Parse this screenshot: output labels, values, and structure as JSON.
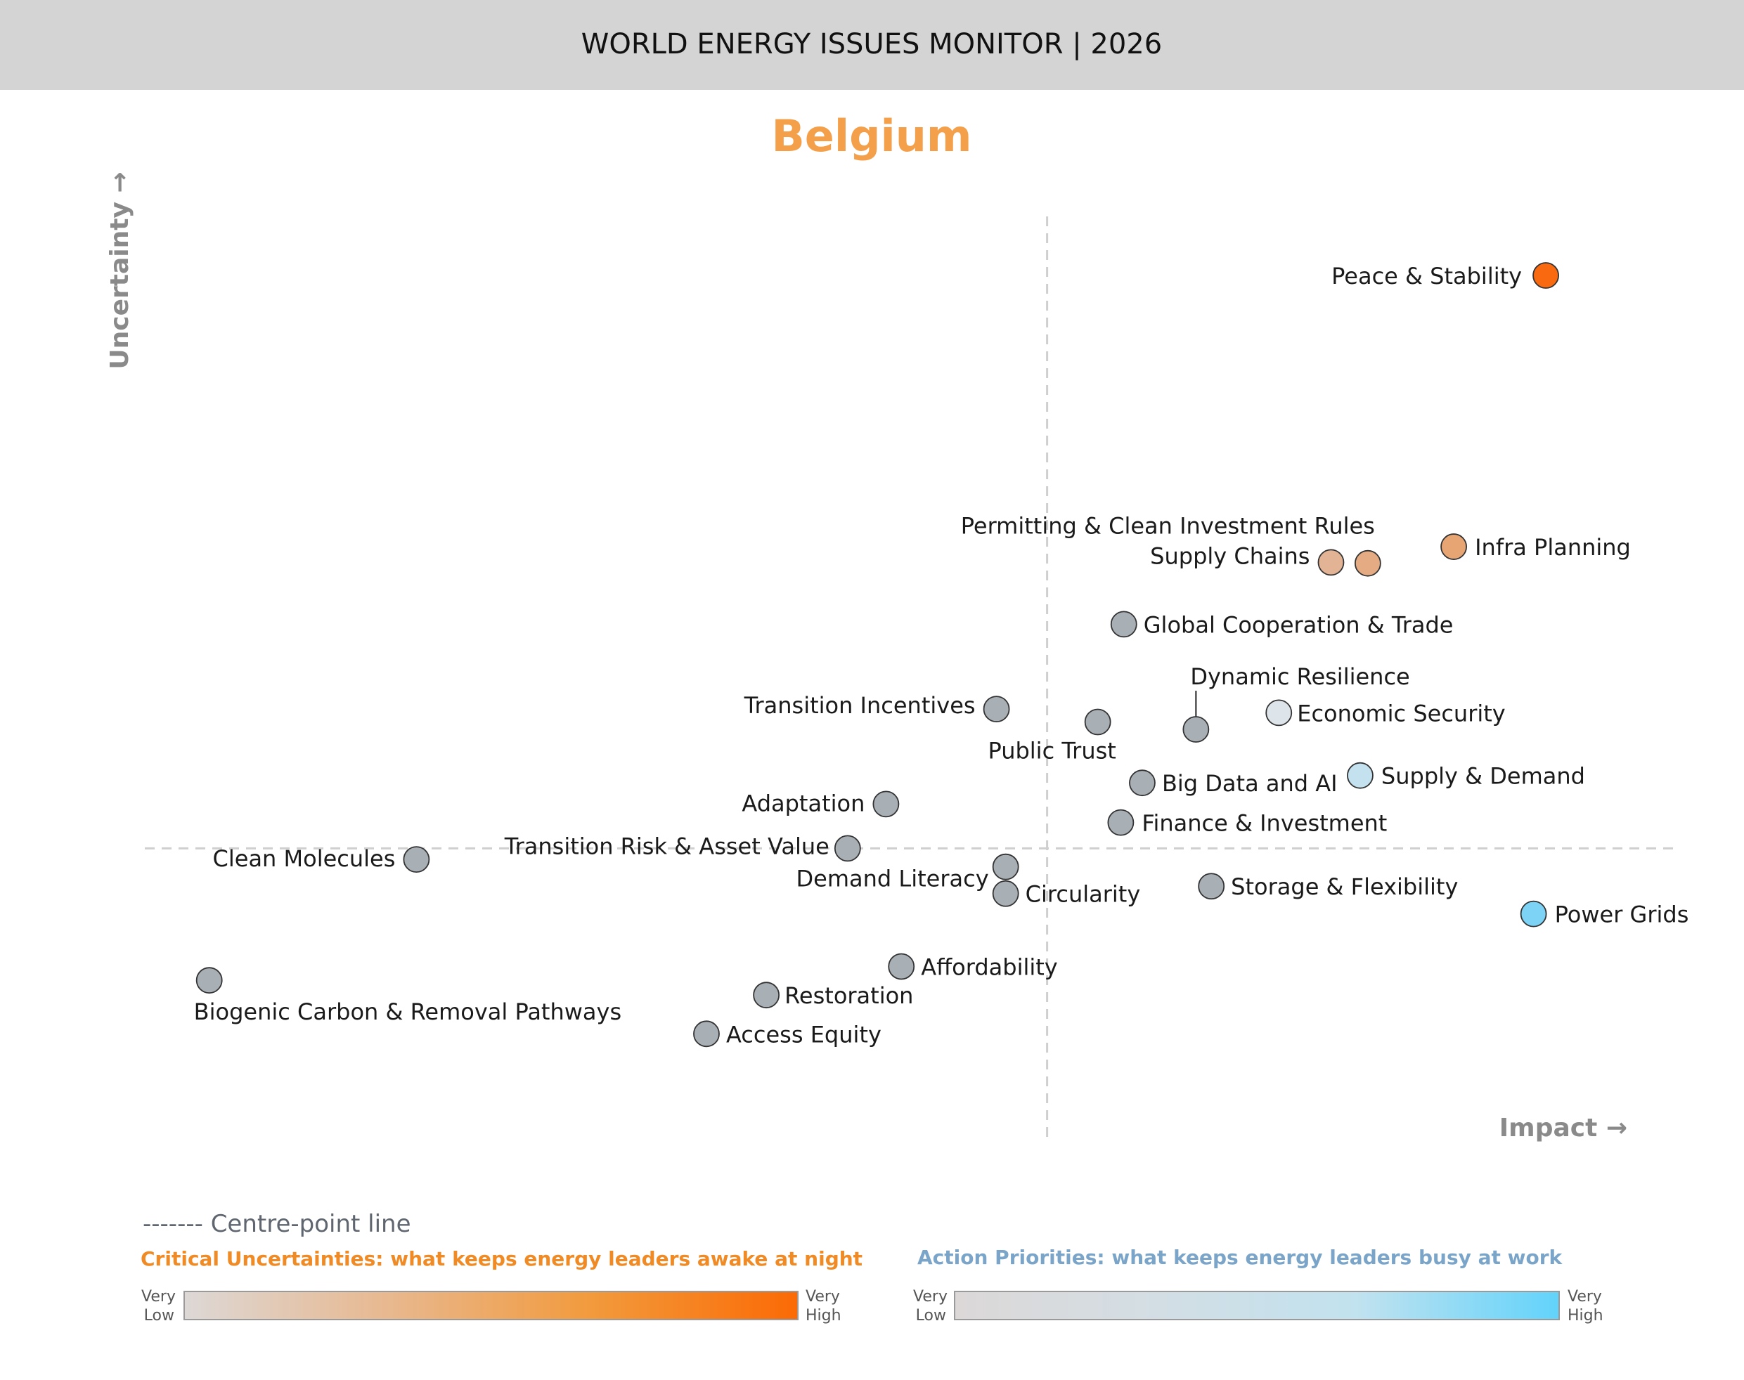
{
  "header": {
    "title": "WORLD ENERGY ISSUES MONITOR | 2026"
  },
  "country": "Belgium",
  "axes": {
    "y_label": "Uncertainty →",
    "x_label": "Impact →"
  },
  "legend": {
    "centre_line": "------- Centre-point line",
    "critical_title": "Critical Uncertainties: what keeps energy leaders awake at night",
    "action_title": "Action Priorities: what keeps energy leaders busy at work",
    "very": "Very",
    "low": "Low",
    "high": "High",
    "critical_colors": [
      "#ddd8d6",
      "#e8b88f",
      "#f29a3c",
      "#fb6a05"
    ],
    "action_colors": [
      "#dcd8d8",
      "#d3dee4",
      "#c1e2ef",
      "#62d3fb"
    ]
  },
  "chart_data": {
    "type": "scatter",
    "xlabel": "Impact",
    "ylabel": "Uncertainty",
    "xlim": [
      0,
      10
    ],
    "ylim": [
      0,
      10
    ],
    "centre": {
      "x": 5.88,
      "y": 3.15
    },
    "grid": false,
    "points": [
      {
        "name": "Peace & Stability",
        "x": 9.13,
        "y": 9.36,
        "color": "#f96a10"
      },
      {
        "name": "Infra Planning",
        "x": 8.53,
        "y": 6.42,
        "color": "#e8a574"
      },
      {
        "name": "Supply Chains",
        "x": 7.73,
        "y": 6.25,
        "color": "#e2b394"
      },
      {
        "name": "Permitting & Clean Investment Rules",
        "x": 7.97,
        "y": 6.24,
        "color": "#e5ab82"
      },
      {
        "name": "Global Cooperation & Trade",
        "x": 6.38,
        "y": 5.58,
        "color": "#a9b0b5"
      },
      {
        "name": "Transition Incentives",
        "x": 5.55,
        "y": 4.66,
        "color": "#a9b0b5"
      },
      {
        "name": "Public Trust",
        "x": 6.21,
        "y": 4.52,
        "color": "#a9b0b5"
      },
      {
        "name": "Dynamic Resilience",
        "x": 6.85,
        "y": 4.44,
        "color": "#a9b0b5"
      },
      {
        "name": "Economic Security",
        "x": 7.39,
        "y": 4.62,
        "color": "#dde4ea"
      },
      {
        "name": "Supply & Demand",
        "x": 7.92,
        "y": 3.94,
        "color": "#c3e1ee"
      },
      {
        "name": "Big Data and AI",
        "x": 6.5,
        "y": 3.86,
        "color": "#a9b0b5"
      },
      {
        "name": "Finance & Investment",
        "x": 6.36,
        "y": 3.43,
        "color": "#a9b0b5"
      },
      {
        "name": "Adaptation",
        "x": 4.83,
        "y": 3.63,
        "color": "#a9b0b5"
      },
      {
        "name": "Transition Risk & Asset Value",
        "x": 4.58,
        "y": 3.15,
        "color": "#a9b0b5"
      },
      {
        "name": "Clean Molecules",
        "x": 1.77,
        "y": 3.03,
        "color": "#a9b0b5"
      },
      {
        "name": "Demand Literacy",
        "x": 5.61,
        "y": 2.95,
        "color": "#a9b0b5"
      },
      {
        "name": "Circularity",
        "x": 5.61,
        "y": 2.66,
        "color": "#a9b0b5"
      },
      {
        "name": "Storage & Flexibility",
        "x": 6.95,
        "y": 2.74,
        "color": "#a9b0b5"
      },
      {
        "name": "Power Grids",
        "x": 9.05,
        "y": 2.44,
        "color": "#7dd3f5"
      },
      {
        "name": "Affordability",
        "x": 4.93,
        "y": 1.87,
        "color": "#a9b0b5"
      },
      {
        "name": "Restoration",
        "x": 4.05,
        "y": 1.56,
        "color": "#a9b0b5"
      },
      {
        "name": "Access Equity",
        "x": 3.66,
        "y": 1.14,
        "color": "#a9b0b5"
      },
      {
        "name": "Biogenic Carbon & Removal Pathways",
        "x": 0.42,
        "y": 1.72,
        "color": "#a9b0b5"
      }
    ]
  }
}
